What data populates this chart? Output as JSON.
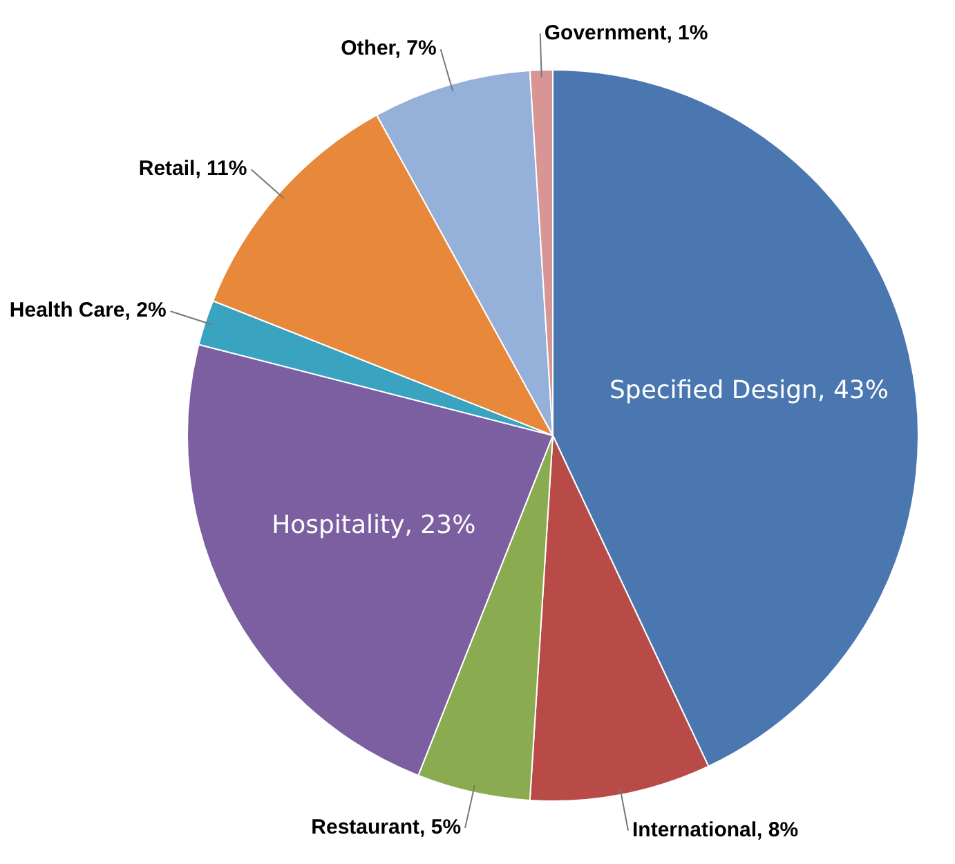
{
  "chart_data": {
    "type": "pie",
    "categories": [
      "Specified Design",
      "International",
      "Restaurant",
      "Hospitality",
      "Health Care",
      "Retail",
      "Other",
      "Government"
    ],
    "values": [
      43,
      8,
      5,
      23,
      2,
      11,
      7,
      1
    ],
    "colors": [
      "#4a77b0",
      "#b84a47",
      "#8aab4f",
      "#7c5fa0",
      "#3aa3c0",
      "#e8883a",
      "#95b0d9",
      "#d99594"
    ],
    "value_labels": [
      "43%",
      "8%",
      "5%",
      "23%",
      "2%",
      "11%",
      "7%",
      "1%"
    ],
    "legend": false
  }
}
